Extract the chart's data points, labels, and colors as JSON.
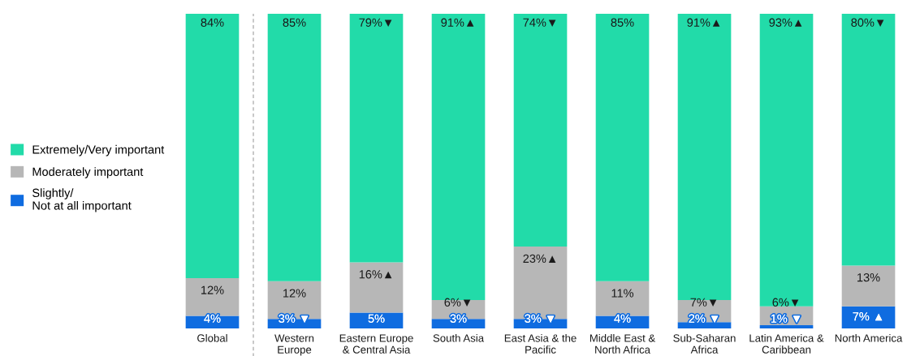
{
  "chart_data": {
    "type": "bar",
    "stacked": true,
    "categories": [
      "Global",
      "Western\nEurope",
      "Eastern Europe\n& Central Asia",
      "South Asia",
      "East Asia & the\nPacific",
      "Middle East &\nNorth Africa",
      "Sub-Saharan\nAfrica",
      "Latin America &\nCaribbean",
      "North America"
    ],
    "series": [
      {
        "name": "Slightly/\nNot at all important",
        "color": "#0f6ce0",
        "values": [
          4,
          3,
          5,
          3,
          3,
          4,
          2,
          1,
          7
        ],
        "value_labels": [
          "4%",
          "3% ▼",
          "5%",
          "3%",
          "3% ▼",
          "4%",
          "2% ▼",
          "1% ▼",
          "7% ▲"
        ]
      },
      {
        "name": "Moderately important",
        "color": "#b7b7b7",
        "values": [
          12,
          12,
          16,
          6,
          23,
          11,
          7,
          6,
          13
        ],
        "value_labels": [
          "12%",
          "12%",
          "16%▲",
          "6%▼",
          "23%▲",
          "11%",
          "7%▼",
          "6%▼",
          "13%"
        ]
      },
      {
        "name": "Extremely/Very important",
        "color": "#22dba9",
        "values": [
          84,
          85,
          79,
          91,
          74,
          85,
          91,
          93,
          80
        ],
        "value_labels": [
          "84%",
          "85%",
          "79%▼",
          "91%▲",
          "74%▼",
          "85%",
          "91%▲",
          "93%▲",
          "80%▼"
        ]
      }
    ],
    "ylim": [
      0,
      100
    ],
    "tick_labels": "x",
    "legend": "left"
  }
}
